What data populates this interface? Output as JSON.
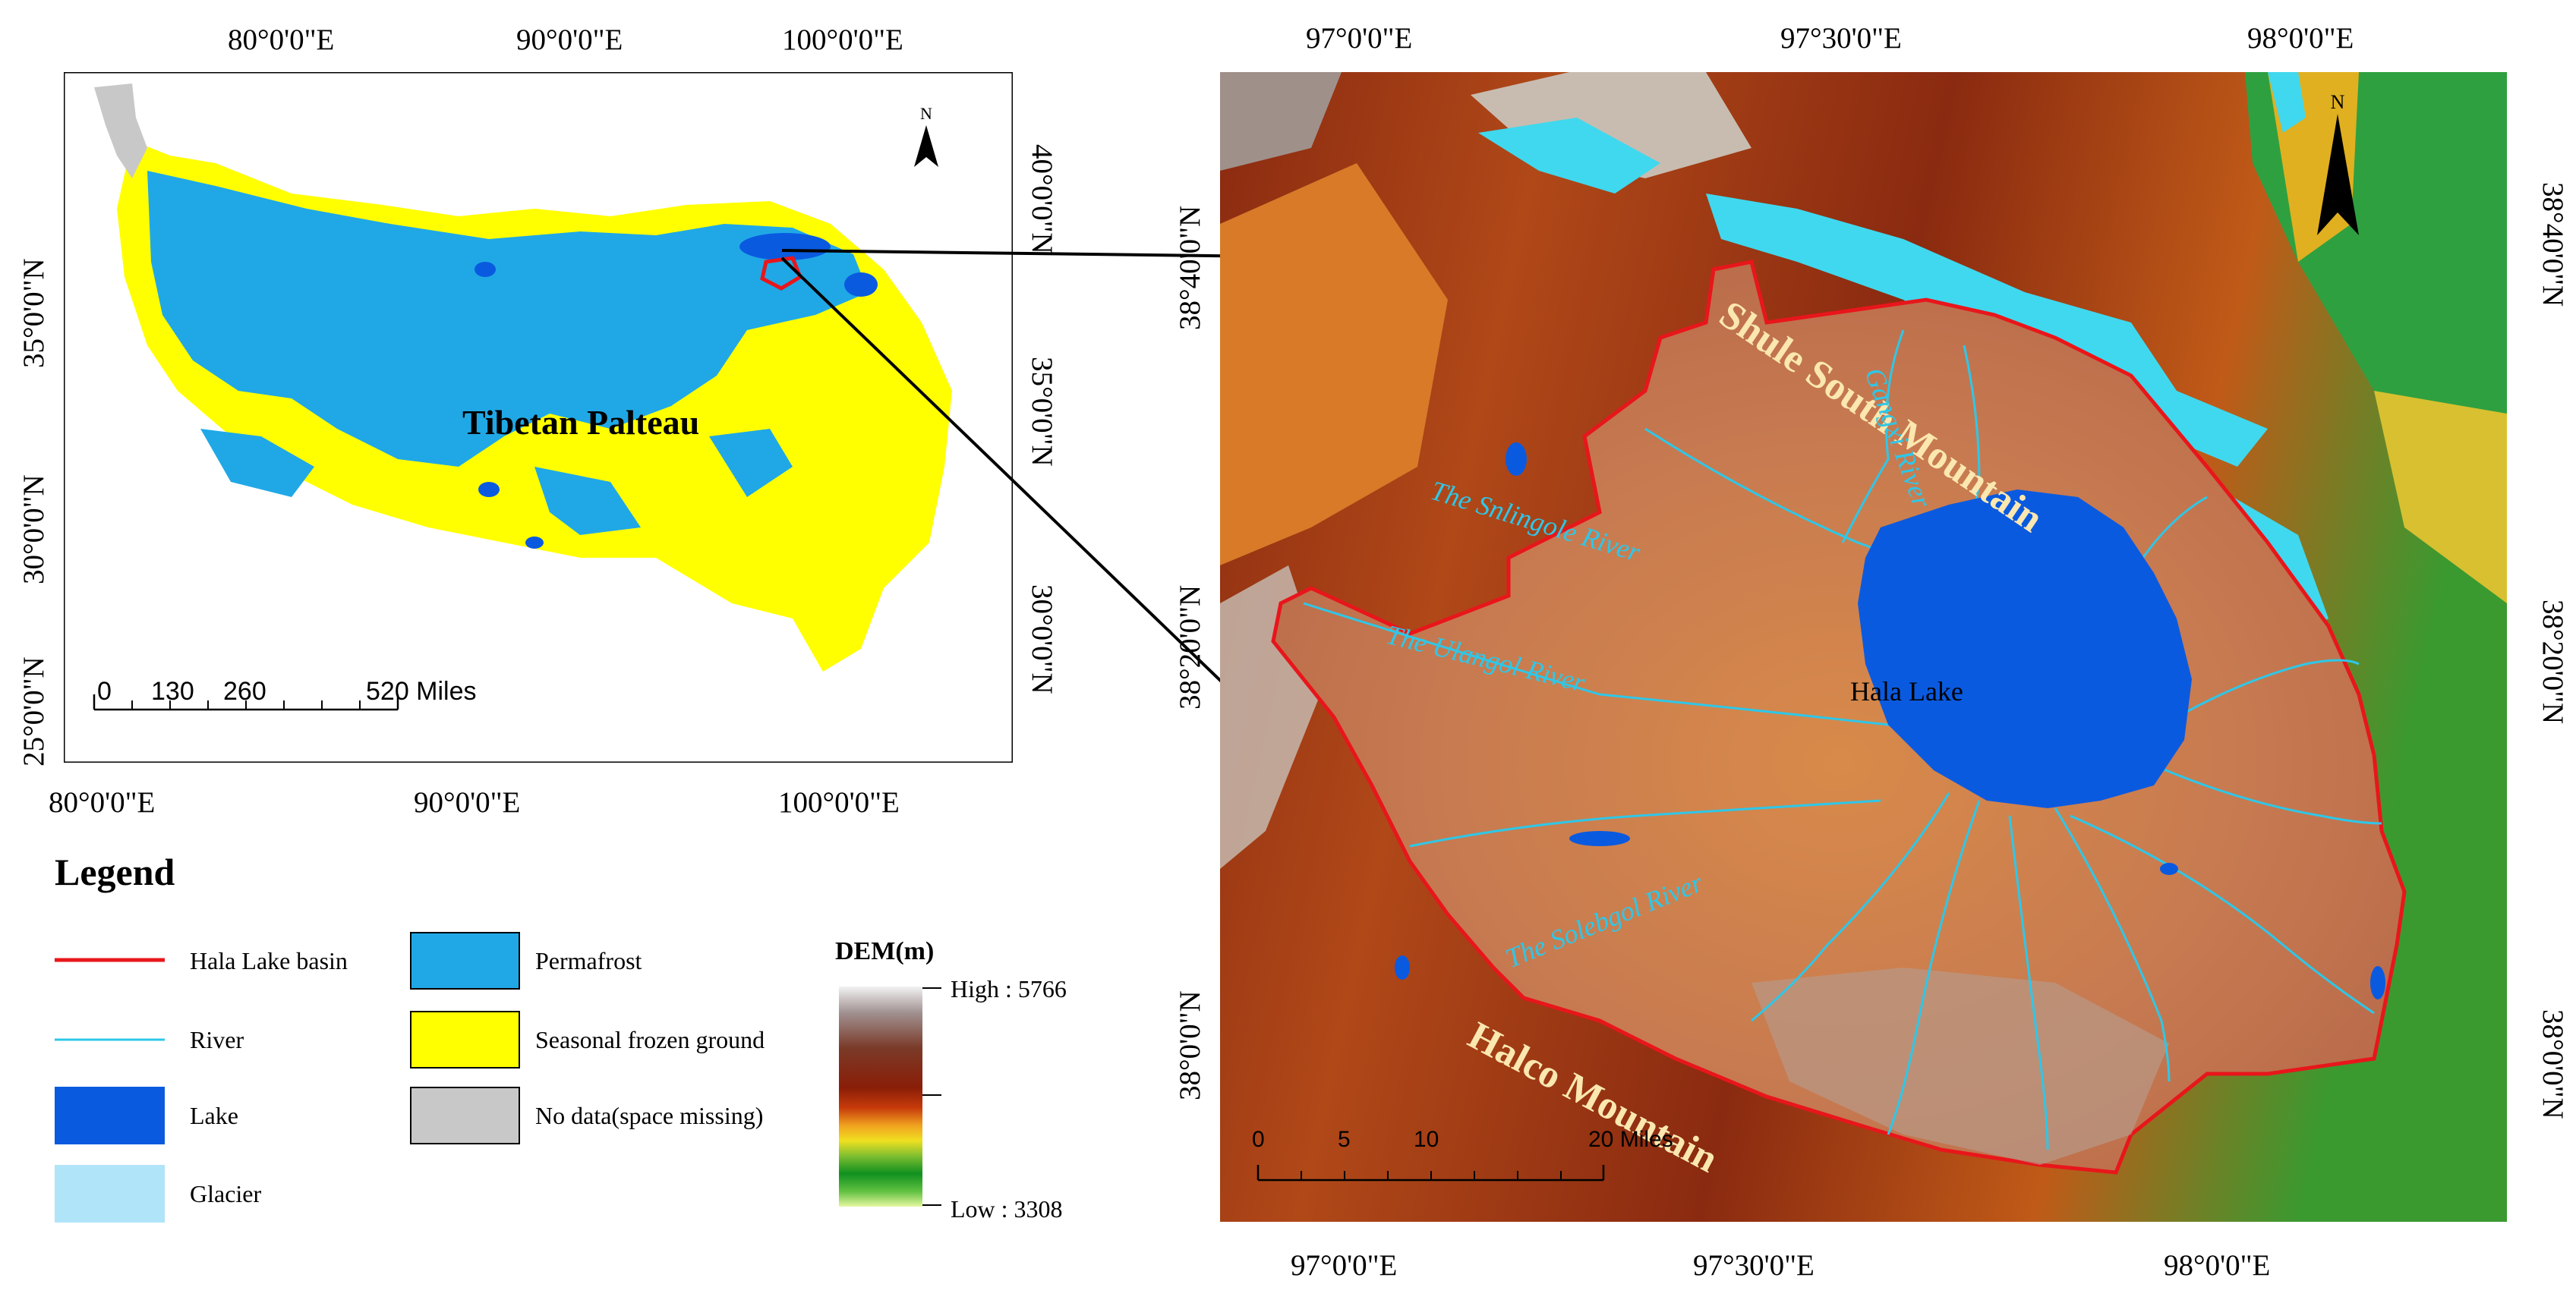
{
  "left_map": {
    "top_ticks": [
      "80°0'0\"E",
      "90°0'0\"E",
      "100°0'0\"E"
    ],
    "bottom_ticks": [
      "80°0'0\"E",
      "90°0'0\"E",
      "100°0'0\"E"
    ],
    "left_ticks": [
      "35°0'0\"N",
      "30°0'0\"N",
      "25°0'0\"N"
    ],
    "right_ticks": [
      "40°0'0\"N",
      "35°0'0\"N",
      "30°0'0\"N"
    ],
    "region_label": "Tibetan Palteau",
    "north_label": "N",
    "scale_labels": [
      "0",
      "130",
      "260",
      "520 Miles"
    ]
  },
  "legend": {
    "title": "Legend",
    "items": [
      {
        "label": "Hala Lake basin",
        "color": "#e8161b",
        "kind": "line"
      },
      {
        "label": "River",
        "color": "#2ec7e8",
        "kind": "line"
      },
      {
        "label": "Lake",
        "color": "#0a5ae0",
        "kind": "fill"
      },
      {
        "label": "Glacier",
        "color": "#b0e4f8",
        "kind": "fill"
      },
      {
        "label": "Permafrost",
        "color": "#20a8e6",
        "kind": "fill"
      },
      {
        "label": "Seasonal frozen ground",
        "color": "#ffff00",
        "kind": "fill"
      },
      {
        "label": "No data(space missing)",
        "color": "#c8c8c8",
        "kind": "fill"
      }
    ],
    "dem_title": "DEM(m)",
    "dem_high": "High : 5766",
    "dem_low": "Low : 3308"
  },
  "right_map": {
    "top_ticks": [
      "97°0'0\"E",
      "97°30'0\"E",
      "98°0'0\"E"
    ],
    "bottom_ticks": [
      "97°0'0\"E",
      "97°30'0\"E",
      "98°0'0\"E"
    ],
    "left_ticks": [
      "38°40'0\"N",
      "38°20'0\"N",
      "38°0'0\"N"
    ],
    "right_ticks": [
      "38°40'0\"N",
      "38°20'0\"N",
      "38°0'0\"N"
    ],
    "north_label": "N",
    "lake_label": "Hala Lake",
    "labels": {
      "shule": "Shule South Mountain",
      "halco": "Halco Mountain",
      "gangxi": "Gangxi River",
      "snlingole": "The Snlingole River",
      "ulangol": "The Ulangol River",
      "solebgol": "The Solebgol River"
    },
    "scale_labels": [
      "0",
      "5",
      "10",
      "20 Miles"
    ]
  }
}
